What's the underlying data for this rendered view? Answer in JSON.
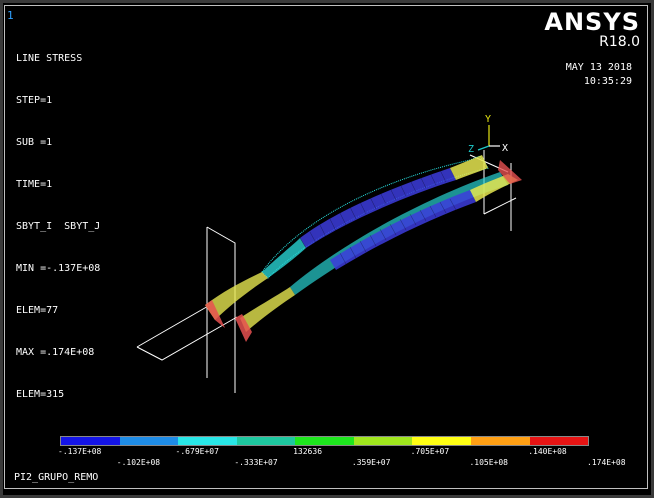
{
  "window_number": "1",
  "info": {
    "title": "LINE STRESS",
    "step": "STEP=1",
    "sub": "SUB =1",
    "time": "TIME=1",
    "items": "SBYT_I  SBYT_J",
    "min": "MIN =-.137E+08",
    "min_elem": "ELEM=77",
    "max": "MAX =.174E+08",
    "max_elem": "ELEM=315"
  },
  "brand": {
    "name": "ANSYS",
    "version": "R18.0"
  },
  "date": {
    "day": "MAY 13 2018",
    "time": "10:35:29"
  },
  "triad": {
    "x": "X",
    "y": "Y",
    "z": "Z"
  },
  "legend": {
    "colors": [
      "#1414e6",
      "#1e8ce6",
      "#28e6e6",
      "#1ec8a0",
      "#1ee61e",
      "#a0e61e",
      "#ffff14",
      "#ffa014",
      "#e61414"
    ],
    "labels_top": [
      "-.137E+08",
      "-.679E+07",
      "132636",
      ".705E+07",
      ".140E+08"
    ],
    "labels_bottom": [
      "-.102E+08",
      "-.333E+07",
      ".359E+07",
      ".105E+08",
      ".174E+08"
    ]
  },
  "footer": "PI2_GRUPO_REMO"
}
